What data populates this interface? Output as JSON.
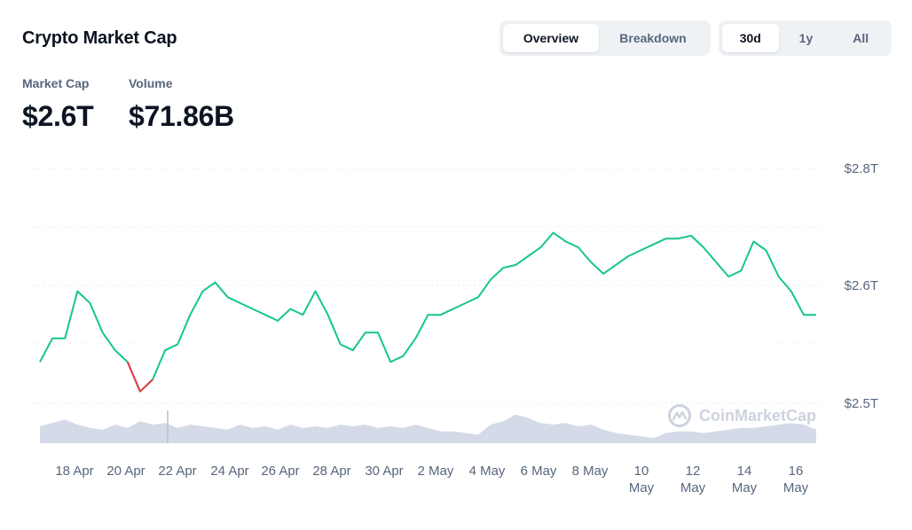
{
  "header": {
    "title": "Crypto Market Cap",
    "view_toggle": [
      "Overview",
      "Breakdown"
    ],
    "view_active": 0,
    "range_toggle": [
      "30d",
      "1y",
      "All"
    ],
    "range_active": 0
  },
  "stats": [
    {
      "label": "Market Cap",
      "value": "$2.6T"
    },
    {
      "label": "Volume",
      "value": "$71.86B"
    }
  ],
  "watermark": "CoinMarketCap",
  "colors": {
    "up": "#16c784",
    "down": "#ea3943",
    "volume": "#cfd6e4",
    "grid": "#e6eaf0",
    "label": "#58667e"
  },
  "chart_data": {
    "type": "area",
    "y_ticks": [
      "$2.8T",
      "$2.6T",
      "$2.5T"
    ],
    "x_ticks": [
      "18 Apr",
      "20 Apr",
      "22 Apr",
      "24 Apr",
      "26 Apr",
      "28 Apr",
      "30 Apr",
      "2 May",
      "4 May",
      "6 May",
      "8 May",
      "10 May",
      "12 May",
      "14 May",
      "16 May"
    ],
    "reference_line_color_rule": "green above start value, red below",
    "market_cap": {
      "x": [
        "16 Apr",
        "16 Apr 12h",
        "17 Apr",
        "17 Apr 12h",
        "18 Apr",
        "18 Apr 12h",
        "19 Apr",
        "19 Apr 12h",
        "20 Apr",
        "20 Apr 12h",
        "21 Apr",
        "21 Apr 12h",
        "22 Apr",
        "22 Apr 12h",
        "23 Apr",
        "23 Apr 12h",
        "24 Apr",
        "24 Apr 12h",
        "25 Apr",
        "25 Apr 12h",
        "26 Apr",
        "26 Apr 12h",
        "27 Apr",
        "27 Apr 12h",
        "28 Apr",
        "28 Apr 12h",
        "29 Apr",
        "29 Apr 12h",
        "30 Apr",
        "30 Apr 12h",
        "1 May",
        "1 May 12h",
        "2 May",
        "2 May 12h",
        "3 May",
        "3 May 12h",
        "4 May",
        "4 May 12h",
        "5 May",
        "5 May 12h",
        "6 May",
        "6 May 12h",
        "7 May",
        "7 May 12h",
        "8 May",
        "8 May 12h",
        "9 May",
        "9 May 12h",
        "10 May",
        "10 May 12h",
        "11 May",
        "11 May 12h",
        "12 May",
        "12 May 12h",
        "13 May",
        "13 May 12h",
        "14 May",
        "14 May 12h",
        "15 May",
        "15 May 12h",
        "16 May",
        "16 May 12h",
        "17 May"
      ],
      "values": [
        2.535,
        2.555,
        2.555,
        2.595,
        2.585,
        2.56,
        2.545,
        2.535,
        2.51,
        2.52,
        2.545,
        2.55,
        2.575,
        2.595,
        2.605,
        2.59,
        2.585,
        2.58,
        2.575,
        2.57,
        2.58,
        2.575,
        2.595,
        2.575,
        2.55,
        2.545,
        2.56,
        2.56,
        2.535,
        2.54,
        2.555,
        2.575,
        2.575,
        2.58,
        2.585,
        2.59,
        2.61,
        2.63,
        2.635,
        2.65,
        2.665,
        2.69,
        2.675,
        2.665,
        2.64,
        2.62,
        2.635,
        2.65,
        2.66,
        2.67,
        2.68,
        2.68,
        2.685,
        2.665,
        2.64,
        2.615,
        2.625,
        2.675,
        2.66,
        2.615,
        2.595,
        2.575,
        2.575
      ]
    },
    "volume": {
      "values": [
        0.5,
        0.6,
        0.7,
        0.55,
        0.45,
        0.4,
        0.55,
        0.45,
        0.65,
        0.55,
        0.6,
        0.45,
        0.55,
        0.5,
        0.45,
        0.4,
        0.55,
        0.45,
        0.5,
        0.4,
        0.55,
        0.45,
        0.5,
        0.45,
        0.55,
        0.5,
        0.55,
        0.45,
        0.5,
        0.45,
        0.55,
        0.45,
        0.35,
        0.35,
        0.3,
        0.25,
        0.55,
        0.65,
        0.85,
        0.75,
        0.6,
        0.55,
        0.6,
        0.5,
        0.55,
        0.4,
        0.3,
        0.25,
        0.2,
        0.15,
        0.3,
        0.35,
        0.35,
        0.3,
        0.35,
        0.4,
        0.45,
        0.45,
        0.5,
        0.55,
        0.6,
        0.55,
        0.4
      ]
    }
  }
}
